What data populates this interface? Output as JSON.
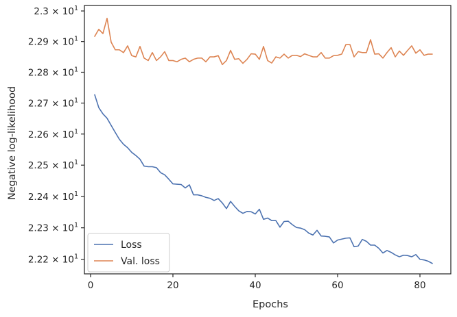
{
  "chart_data": {
    "type": "line",
    "title": "",
    "xlabel": "Epochs",
    "ylabel": "Negative log-likelihood",
    "xlim": [
      -1.5,
      87.5
    ],
    "ylim": [
      22.154,
      23.018
    ],
    "y_scale": "log",
    "grid": false,
    "legend_position": "lower-left",
    "x_ticks": [
      0,
      20,
      40,
      60,
      80
    ],
    "x_tick_labels": [
      "0",
      "20",
      "40",
      "60",
      "80"
    ],
    "y_ticks": [
      {
        "value": 22.2,
        "mantissa": "2.22",
        "times": "×",
        "base": "10",
        "exp": "1"
      },
      {
        "value": 22.3,
        "mantissa": "2.23",
        "times": "×",
        "base": "10",
        "exp": "1"
      },
      {
        "value": 22.4,
        "mantissa": "2.24",
        "times": "×",
        "base": "10",
        "exp": "1"
      },
      {
        "value": 22.5,
        "mantissa": "2.25",
        "times": "×",
        "base": "10",
        "exp": "1"
      },
      {
        "value": 22.6,
        "mantissa": "2.26",
        "times": "×",
        "base": "10",
        "exp": "1"
      },
      {
        "value": 22.7,
        "mantissa": "2.27",
        "times": "×",
        "base": "10",
        "exp": "1"
      },
      {
        "value": 22.8,
        "mantissa": "2.28",
        "times": "×",
        "base": "10",
        "exp": "1"
      },
      {
        "value": 22.9,
        "mantissa": "2.29",
        "times": "×",
        "base": "10",
        "exp": "1"
      },
      {
        "value": 23.0,
        "mantissa": "2.3",
        "times": "×",
        "base": "10",
        "exp": "1"
      }
    ],
    "x": [
      1,
      2,
      3,
      4,
      5,
      6,
      7,
      8,
      9,
      10,
      11,
      12,
      13,
      14,
      15,
      16,
      17,
      18,
      19,
      20,
      21,
      22,
      23,
      24,
      25,
      26,
      27,
      28,
      29,
      30,
      31,
      32,
      33,
      34,
      35,
      36,
      37,
      38,
      39,
      40,
      41,
      42,
      43,
      44,
      45,
      46,
      47,
      48,
      49,
      50,
      51,
      52,
      53,
      54,
      55,
      56,
      57,
      58,
      59,
      60,
      61,
      62,
      63,
      64,
      65,
      66,
      67,
      68,
      69,
      70,
      71,
      72,
      73,
      74,
      75,
      76,
      77,
      78,
      79,
      80,
      81,
      82,
      83
    ],
    "series": [
      {
        "name": "Loss",
        "color": "#4c72b0",
        "values": [
          22.727,
          22.685,
          22.665,
          22.651,
          22.628,
          22.605,
          22.583,
          22.567,
          22.556,
          22.541,
          22.531,
          22.519,
          22.497,
          22.495,
          22.495,
          22.492,
          22.476,
          22.469,
          22.455,
          22.44,
          22.439,
          22.438,
          22.427,
          22.437,
          22.405,
          22.405,
          22.402,
          22.397,
          22.394,
          22.387,
          22.393,
          22.379,
          22.361,
          22.384,
          22.368,
          22.354,
          22.346,
          22.352,
          22.351,
          22.344,
          22.359,
          22.327,
          22.331,
          22.323,
          22.323,
          22.302,
          22.32,
          22.321,
          22.31,
          22.301,
          22.299,
          22.294,
          22.283,
          22.277,
          22.292,
          22.274,
          22.273,
          22.271,
          22.252,
          22.261,
          22.264,
          22.267,
          22.268,
          22.24,
          22.242,
          22.263,
          22.257,
          22.245,
          22.245,
          22.235,
          22.22,
          22.228,
          22.222,
          22.214,
          22.208,
          22.213,
          22.212,
          22.208,
          22.215,
          22.2,
          22.198,
          22.194,
          22.187
        ]
      },
      {
        "name": "Val. loss",
        "color": "#dd8452",
        "values": [
          22.917,
          22.94,
          22.926,
          22.976,
          22.898,
          22.873,
          22.873,
          22.864,
          22.886,
          22.854,
          22.85,
          22.884,
          22.846,
          22.838,
          22.864,
          22.838,
          22.85,
          22.867,
          22.838,
          22.838,
          22.834,
          22.842,
          22.846,
          22.834,
          22.842,
          22.846,
          22.846,
          22.834,
          22.85,
          22.85,
          22.854,
          22.825,
          22.838,
          22.871,
          22.842,
          22.844,
          22.829,
          22.842,
          22.86,
          22.859,
          22.842,
          22.884,
          22.838,
          22.83,
          22.85,
          22.846,
          22.859,
          22.846,
          22.855,
          22.855,
          22.851,
          22.86,
          22.855,
          22.85,
          22.85,
          22.864,
          22.846,
          22.846,
          22.854,
          22.855,
          22.859,
          22.89,
          22.89,
          22.85,
          22.867,
          22.864,
          22.864,
          22.906,
          22.859,
          22.86,
          22.846,
          22.864,
          22.88,
          22.85,
          22.869,
          22.855,
          22.871,
          22.886,
          22.862,
          22.873,
          22.855,
          22.859,
          22.859
        ]
      }
    ]
  }
}
